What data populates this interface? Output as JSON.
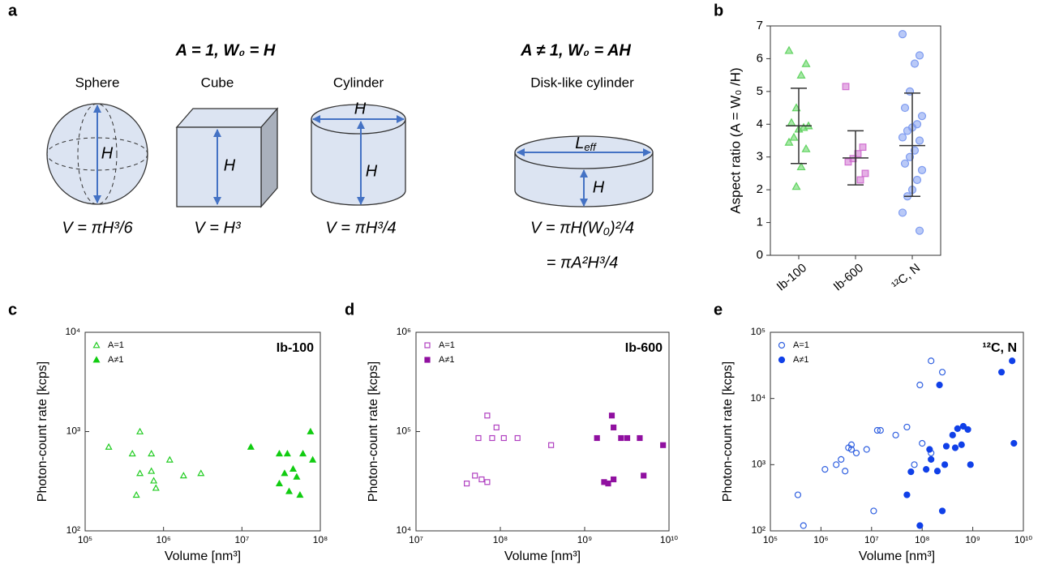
{
  "diagram": {
    "panel_label": "a",
    "heading_left": "A = 1, W₀ = H",
    "heading_right": "A ≠ 1, W₀ = AH",
    "shapes": [
      {
        "name": "Sphere",
        "formula": "V = πH³/6"
      },
      {
        "name": "Cube",
        "formula": "V = H³"
      },
      {
        "name": "Cylinder",
        "formula": "V = πH³/4"
      },
      {
        "name": "Disk-like cylinder",
        "formula": "V = πH(W₀)²/4",
        "formula_2": "= πA²H³/4"
      }
    ],
    "dimension": "H",
    "length_main": "L",
    "length_sub": "eff"
  },
  "chart_data": [
    {
      "type": "strip",
      "panel_label": "b",
      "y_label": "Aspect ratio (A = W₀ /H)",
      "categories": [
        "Ib-100",
        "Ib-600",
        "¹²C, N"
      ],
      "ylim": [
        0,
        7
      ],
      "yticks": [
        0,
        1,
        2,
        3,
        4,
        5,
        6,
        7
      ],
      "groups": [
        {
          "color": "#5fd35f",
          "marker": "triangle",
          "values": [
            6.25,
            5.85,
            5.5,
            4.5,
            4.05,
            3.95,
            3.9,
            3.85,
            3.6,
            3.45,
            3.25,
            2.7,
            2.1
          ],
          "mean": 3.95,
          "upper": 5.1,
          "lower": 2.8
        },
        {
          "color": "#d070d0",
          "marker": "square",
          "values": [
            5.15,
            3.3,
            3.1,
            2.95,
            2.85,
            2.5,
            2.3
          ],
          "mean": 2.97,
          "upper": 3.8,
          "lower": 2.15
        },
        {
          "color": "#7f9cf0",
          "marker": "circle",
          "values": [
            6.75,
            6.1,
            5.85,
            5.0,
            4.5,
            4.25,
            4.0,
            3.9,
            3.8,
            3.6,
            3.5,
            3.2,
            3.0,
            2.8,
            2.6,
            2.3,
            2.0,
            1.8,
            1.3,
            0.75
          ],
          "mean": 3.35,
          "upper": 4.95,
          "lower": 1.8
        }
      ]
    },
    {
      "type": "scatter",
      "panel_label": "c",
      "corner_title": "Ib-100",
      "x_label": "Volume [nm³]",
      "y_label": "Photon-count rate [kcps]",
      "xscale": "log",
      "yscale": "log",
      "legend": "upper left",
      "xlim": [
        100000,
        100000000
      ],
      "xticks": [
        {
          "value": 100000,
          "label": "10⁵"
        },
        {
          "value": 1000000,
          "label": "10⁶"
        },
        {
          "value": 10000000,
          "label": "10⁷"
        },
        {
          "value": 100000000,
          "label": "10⁸"
        }
      ],
      "ylim": [
        100,
        10000
      ],
      "yticks": [
        {
          "value": 100,
          "label": "10²"
        },
        {
          "value": 1000,
          "label": "10³"
        },
        {
          "value": 10000,
          "label": "10⁴"
        }
      ],
      "series": [
        {
          "name": "A=1",
          "color": "#22cc22",
          "marker": "triangle",
          "filled": false,
          "x": [
            200000,
            400000,
            500000,
            500000,
            450000,
            700000,
            700000,
            750000,
            800000,
            1200000,
            1800000,
            3000000
          ],
          "values": [
            700,
            600,
            1000,
            380,
            230,
            600,
            400,
            320,
            270,
            520,
            360,
            380
          ]
        },
        {
          "name": "A≠1",
          "color": "#11cc11",
          "marker": "triangle",
          "filled": true,
          "x": [
            13000000,
            30000000,
            35000000,
            30000000,
            38000000,
            40000000,
            45000000,
            50000000,
            55000000,
            60000000,
            75000000,
            80000000
          ],
          "values": [
            700,
            600,
            380,
            300,
            600,
            250,
            420,
            350,
            230,
            600,
            1000,
            520
          ]
        }
      ]
    },
    {
      "type": "scatter",
      "panel_label": "d",
      "corner_title": "Ib-600",
      "x_label": "Volume [nm³]",
      "y_label": "Photon-count rate [kcps]",
      "xscale": "log",
      "yscale": "log",
      "legend": "upper left",
      "xlim": [
        10000000,
        10000000000
      ],
      "xticks": [
        {
          "value": 10000000,
          "label": "10⁷"
        },
        {
          "value": 100000000,
          "label": "10⁸"
        },
        {
          "value": 1000000000,
          "label": "10⁹"
        },
        {
          "value": 10000000000,
          "label": "10¹⁰"
        }
      ],
      "ylim": [
        10000,
        1000000
      ],
      "yticks": [
        {
          "value": 10000,
          "label": "10⁴"
        },
        {
          "value": 100000,
          "label": "10⁵"
        },
        {
          "value": 1000000,
          "label": "10⁶"
        }
      ],
      "series": [
        {
          "name": "A=1",
          "color": "#b040c0",
          "marker": "square",
          "filled": false,
          "x": [
            40000000,
            50000000,
            60000000,
            70000000,
            55000000,
            70000000,
            80000000,
            90000000,
            110000000,
            160000000,
            400000000
          ],
          "values": [
            30000,
            36000,
            33000,
            31000,
            86000,
            145000,
            86000,
            110000,
            86000,
            86000,
            73000
          ]
        },
        {
          "name": "A≠1",
          "color": "#9010a0",
          "marker": "square",
          "filled": true,
          "x": [
            1400000000,
            1700000000,
            1900000000,
            2100000000,
            2200000000,
            2200000000,
            2700000000,
            3200000000,
            4500000000,
            5000000000,
            8500000000
          ],
          "values": [
            86000,
            31000,
            30000,
            145000,
            110000,
            33000,
            86000,
            86000,
            86000,
            36000,
            73000
          ]
        }
      ]
    },
    {
      "type": "scatter",
      "panel_label": "e",
      "corner_title": "¹²C, N",
      "x_label": "Volume [nm³]",
      "y_label": "Photon-count rate [kcps]",
      "xscale": "log",
      "yscale": "log",
      "legend": "upper left",
      "xlim": [
        100000,
        10000000000
      ],
      "xticks": [
        {
          "value": 100000,
          "label": "10⁵"
        },
        {
          "value": 1000000,
          "label": "10⁶"
        },
        {
          "value": 10000000,
          "label": "10⁷"
        },
        {
          "value": 100000000,
          "label": "10⁸"
        },
        {
          "value": 1000000000,
          "label": "10⁹"
        },
        {
          "value": 10000000000,
          "label": "10¹⁰"
        }
      ],
      "ylim": [
        100,
        100000
      ],
      "yticks": [
        {
          "value": 100,
          "label": "10²"
        },
        {
          "value": 1000,
          "label": "10³"
        },
        {
          "value": 10000,
          "label": "10⁴"
        },
        {
          "value": 100000,
          "label": "10⁵"
        }
      ],
      "series": [
        {
          "name": "A=1",
          "color": "#3060e0",
          "marker": "circle",
          "filled": false,
          "x": [
            350000,
            450000,
            1200000,
            2000000,
            2500000,
            3000000,
            3500000,
            4000000,
            4000000,
            5000000,
            8000000,
            11000000,
            13000000,
            15000000,
            30000000,
            50000000,
            70000000,
            100000000,
            90000000,
            150000000,
            150000000,
            250000000
          ],
          "values": [
            350,
            120,
            850,
            1000,
            1200,
            800,
            1800,
            1700,
            2000,
            1500,
            1700,
            200,
            3300,
            3300,
            2800,
            3700,
            1000,
            2100,
            16000,
            37000,
            1500,
            25000
          ]
        },
        {
          "name": "A≠1",
          "color": "#1040e8",
          "marker": "circle",
          "filled": true,
          "x": [
            50000000,
            60000000,
            90000000,
            120000000,
            140000000,
            150000000,
            200000000,
            220000000,
            250000000,
            280000000,
            300000000,
            400000000,
            450000000,
            500000000,
            600000000,
            650000000,
            800000000,
            900000000,
            3700000000,
            6000000000,
            6500000000
          ],
          "values": [
            350,
            780,
            120,
            850,
            1700,
            1200,
            800,
            16000,
            200,
            1000,
            1900,
            2800,
            1800,
            3500,
            2000,
            3800,
            3400,
            1000,
            25000,
            37000,
            2100
          ]
        }
      ]
    }
  ]
}
